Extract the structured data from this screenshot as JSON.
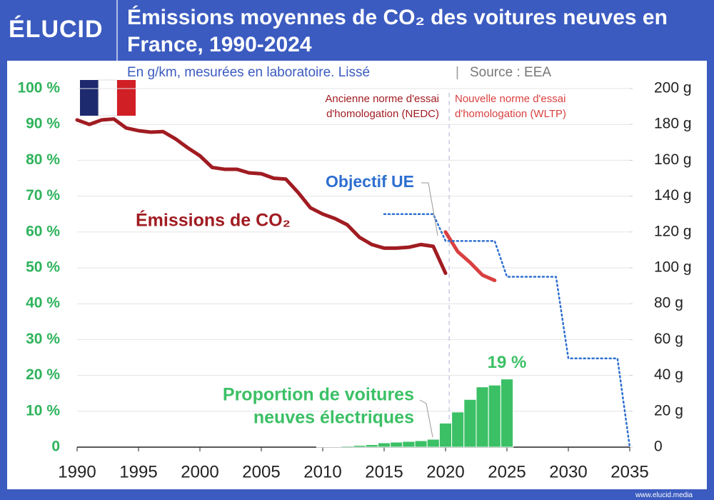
{
  "brand": "ÉLUCID",
  "footer": "www.elucid.media",
  "chart_data": {
    "type": "combo",
    "title": "Émissions moyennes de CO₂ des voitures neuves en France, 1990-2024",
    "subtitle": "En g/km, mesurées en laboratoire. Lissé",
    "source": "Source : EEA",
    "xlim": [
      1990,
      2035
    ],
    "xticks": [
      1990,
      1995,
      2000,
      2005,
      2010,
      2015,
      2020,
      2025,
      2030,
      2035
    ],
    "ylim": [
      0,
      100
    ],
    "yticks": [
      0,
      {
        "value": 10,
        "label": "10 %"
      },
      {
        "value": 20,
        "label": "20 %"
      },
      {
        "value": 30,
        "label": "30 %"
      },
      {
        "value": 40,
        "label": "40 %"
      },
      {
        "value": 50,
        "label": "50 %"
      },
      {
        "value": 60,
        "label": "60 %"
      },
      {
        "value": 70,
        "label": "70 %"
      },
      {
        "value": 80,
        "label": "80 %"
      },
      {
        "value": 90,
        "label": "90 %"
      },
      {
        "value": 100,
        "label": "100 %"
      }
    ],
    "y2lim": [
      0,
      200
    ],
    "y2ticks": [
      0,
      {
        "value": 20,
        "label": "20 g"
      },
      {
        "value": 40,
        "label": "40 g"
      },
      {
        "value": 60,
        "label": "60 g"
      },
      {
        "value": 80,
        "label": "80 g"
      },
      {
        "value": 100,
        "label": "100 g"
      },
      {
        "value": 120,
        "label": "120 g"
      },
      {
        "value": 140,
        "label": "140 g"
      },
      {
        "value": 160,
        "label": "160 g"
      },
      {
        "value": 180,
        "label": "180 g"
      },
      {
        "value": 200,
        "label": "200 g"
      }
    ],
    "grid": true,
    "series": [
      {
        "type": "bar",
        "color": "#3cc066",
        "axis": "y",
        "x": [
          2010,
          2011,
          2012,
          2013,
          2014,
          2015,
          2016,
          2017,
          2018,
          2019,
          2020,
          2021,
          2022,
          2023,
          2024,
          2025
        ],
        "values": [
          0.1,
          0.2,
          0.3,
          0.5,
          0.7,
          1.2,
          1.4,
          1.6,
          1.8,
          2.2,
          6.7,
          9.8,
          13.3,
          16.8,
          17.3,
          19
        ],
        "value_labels": [
          null,
          null,
          null,
          null,
          null,
          null,
          null,
          null,
          null,
          null,
          null,
          null,
          null,
          null,
          null,
          "19 %"
        ]
      },
      {
        "type": "line",
        "color": "#a01c22",
        "axis": "y2",
        "x": [
          1990,
          1991,
          1992,
          1993,
          1994,
          1995,
          1996,
          1997,
          1998,
          1999,
          2000,
          2001,
          2002,
          2003,
          2004,
          2005,
          2006,
          2007,
          2008,
          2009,
          2010,
          2011,
          2012,
          2013,
          2014,
          2015,
          2016,
          2017,
          2018,
          2019,
          2020
        ],
        "values": [
          182.5,
          180,
          182.5,
          183,
          178,
          176.5,
          175.7,
          176,
          172,
          167,
          162.5,
          156,
          155,
          155,
          153,
          152.5,
          150,
          149.5,
          142,
          133.5,
          130,
          127.5,
          124,
          117,
          113,
          111,
          111,
          111.5,
          113,
          112,
          97
        ]
      },
      {
        "type": "line",
        "color": "#d94040",
        "axis": "y2",
        "x": [
          2020,
          2021,
          2022,
          2023,
          2024
        ],
        "values": [
          120,
          109,
          103,
          96,
          93
        ]
      },
      {
        "type": "line",
        "dotted": true,
        "color": "#2e6fd0",
        "axis": "y2",
        "x": [
          2015,
          2019,
          2020,
          2024,
          2025,
          2029,
          2030,
          2034,
          2035
        ],
        "values": [
          130,
          130,
          115,
          115,
          95,
          95,
          49.5,
          49.5,
          0
        ]
      }
    ],
    "annotations": {
      "nedc": [
        "Ancienne norme d'essai",
        "d'homologation (NEDC)"
      ],
      "wltp": [
        "Nouvelle norme d'essai",
        "d'homologation (WLTP)"
      ],
      "objective": "Objectif UE",
      "emissions": "Émissions de CO₂",
      "electric": [
        "Proportion de voitures",
        "neuves électriques"
      ]
    }
  }
}
